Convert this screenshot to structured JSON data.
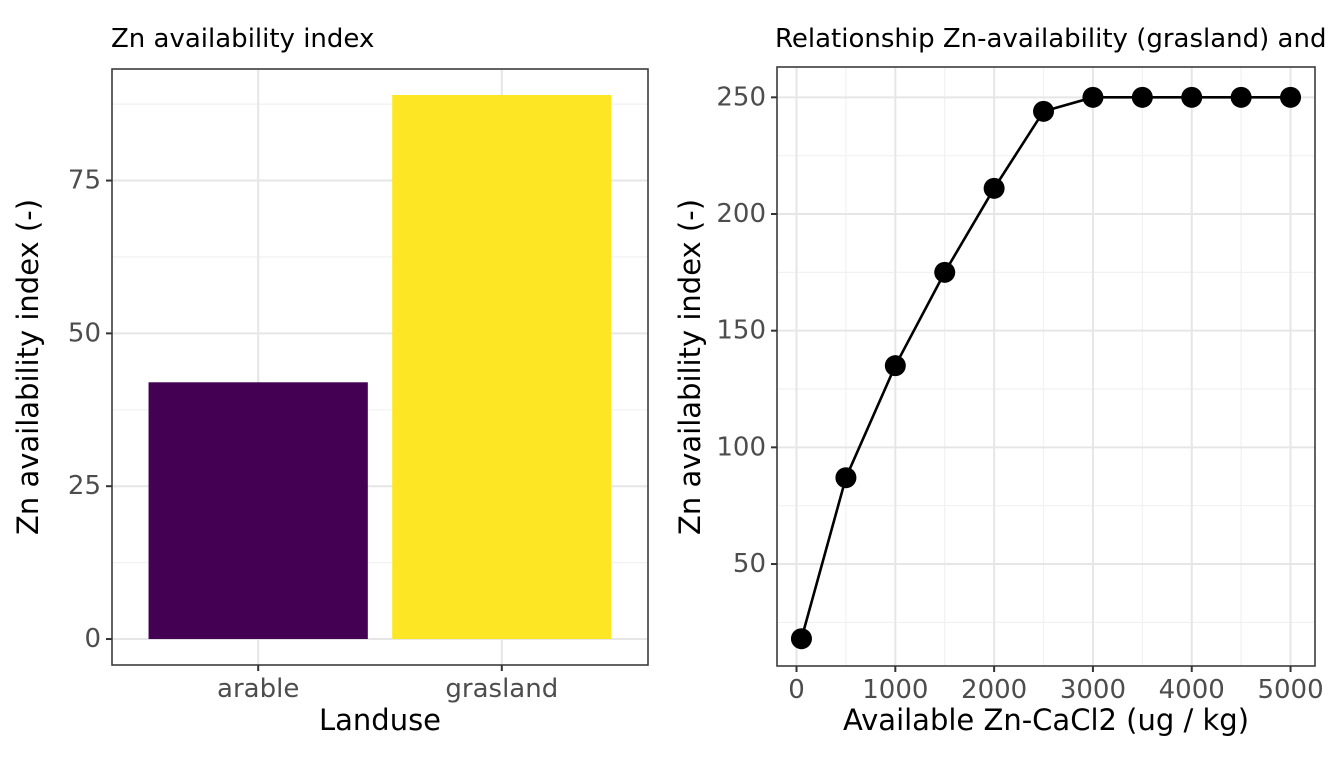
{
  "figure": {
    "background": "#FFFFFF"
  },
  "theme": {
    "title_color": "#000000",
    "axis_title_color": "#000000",
    "tick_label_color": "#4D4D4D",
    "tick_mark_color": "#333333",
    "panel_border_color": "#3C3C3C",
    "grid_major_color": "#E6E6E6",
    "grid_minor_color": "#F1F1F1"
  },
  "chart_data": [
    {
      "type": "bar",
      "title": "Zn availability index",
      "xlabel": "Landuse",
      "ylabel": "Zn availability index (-)",
      "categories": [
        "arable",
        "grasland"
      ],
      "values": [
        42,
        89
      ],
      "bar_colors": [
        "#440154",
        "#FDE725"
      ],
      "yticks": [
        0,
        25,
        50,
        75
      ],
      "ylim": [
        -4.25,
        93.25
      ],
      "grid": true,
      "legend": "none"
    },
    {
      "type": "line",
      "title": "Relationship Zn-availability (grasland) and",
      "xlabel": "Available Zn-CaCl2 (ug / kg)",
      "ylabel": "Zn availability index (-)",
      "x": [
        50,
        500,
        1000,
        1500,
        2000,
        2500,
        3000,
        3500,
        4000,
        4500,
        5000
      ],
      "y": [
        18,
        87,
        135,
        175,
        211,
        244,
        250,
        250,
        250,
        250,
        250
      ],
      "xticks": [
        0,
        1000,
        2000,
        3000,
        4000,
        5000
      ],
      "yticks": [
        50,
        100,
        150,
        200,
        250
      ],
      "xlim": [
        -197.5,
        5247.5
      ],
      "ylim": [
        6.3,
        263
      ],
      "line_color": "#000000",
      "point_color": "#000000",
      "grid": true,
      "legend": "none"
    }
  ]
}
